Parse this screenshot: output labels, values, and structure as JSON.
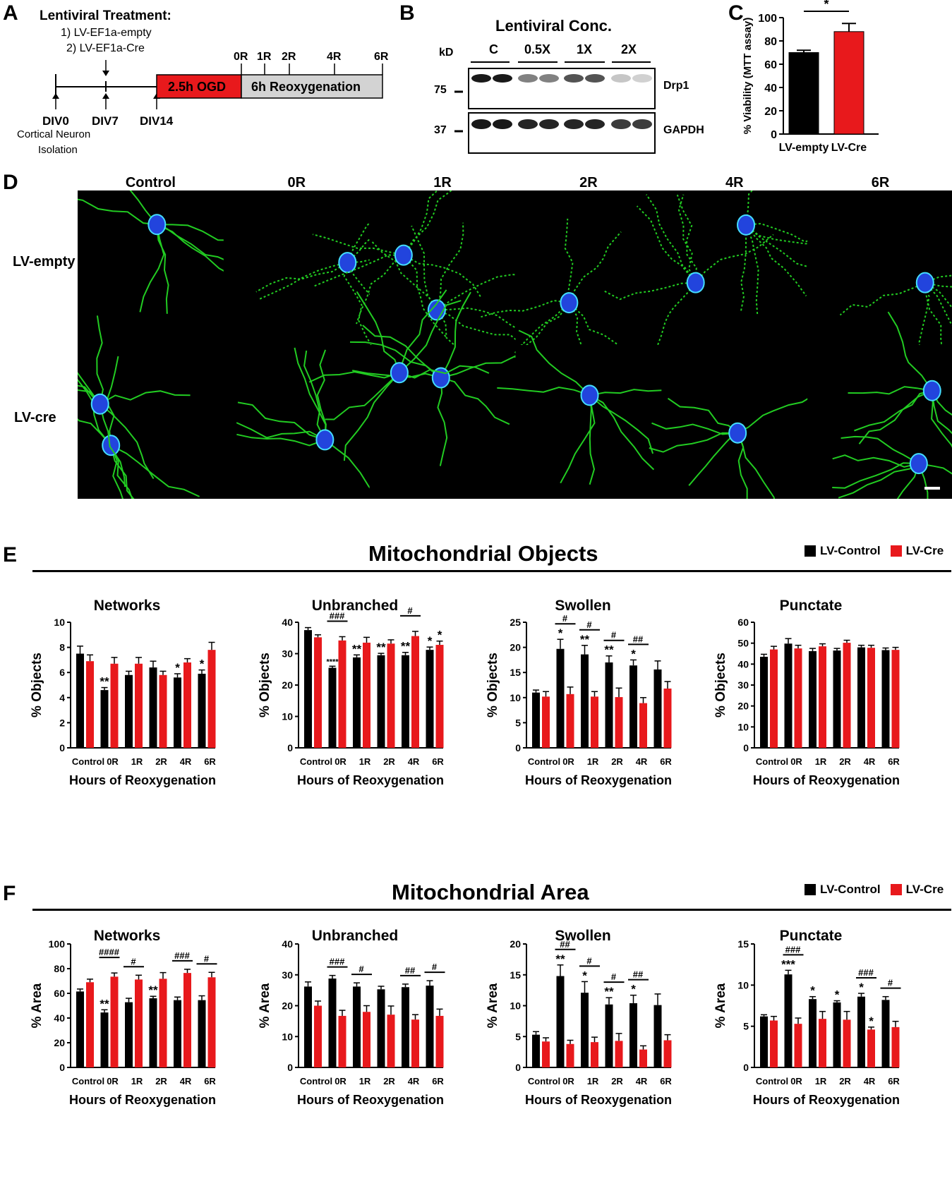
{
  "panel_a": {
    "letter": "A",
    "title": "Lentiviral Treatment:",
    "item1": "1) LV-EF1a-empty",
    "item2": "2) LV-EF1a-Cre",
    "ogd_label": "2.5h OGD",
    "reox_label": "6h Reoxygenation",
    "timepoints": [
      "0R",
      "1R",
      "2R",
      "4R",
      "6R"
    ],
    "div0": "DIV0",
    "div7": "DIV7",
    "div14": "DIV14",
    "isolation_line1": "Cortical Neuron",
    "isolation_line2": "Isolation",
    "colors": {
      "ogd": "#e8191c",
      "reox": "#d3d3d3"
    }
  },
  "panel_b": {
    "letter": "B",
    "title": "Lentiviral Conc.",
    "kd_label": "kD",
    "groups": [
      "C",
      "0.5X",
      "1X",
      "2X"
    ],
    "mw_top": "75",
    "mw_bottom": "37",
    "band_top": "Drp1",
    "band_bottom": "GAPDH",
    "drp1_intensity": [
      1.0,
      1.0,
      0.55,
      0.55,
      0.75,
      0.75,
      0.25,
      0.2
    ],
    "gapdh_intensity": [
      1.0,
      1.0,
      0.95,
      0.95,
      0.95,
      0.95,
      0.85,
      0.85
    ]
  },
  "panel_c": {
    "letter": "C",
    "chart_data": {
      "type": "bar",
      "categories": [
        "LV-empty",
        "LV-Cre"
      ],
      "values": [
        70,
        88
      ],
      "errors": [
        2,
        7
      ],
      "colors": [
        "#000000",
        "#e8191c"
      ],
      "ylabel": "% Viability (MTT assay)",
      "ylim": [
        0,
        100
      ],
      "yticks": [
        "0",
        "20",
        "40",
        "60",
        "80",
        "100"
      ],
      "significance": "*"
    }
  },
  "panel_d": {
    "letter": "D",
    "columns": [
      "Control",
      "0R",
      "1R",
      "2R",
      "4R",
      "6R"
    ],
    "rows": [
      "LV-empty",
      "LV-cre"
    ]
  },
  "panel_e": {
    "letter": "E",
    "title": "Mitochondrial Objects",
    "legend": [
      "LV-Control",
      "LV-Cre"
    ]
  },
  "panel_f": {
    "letter": "F",
    "title": "Mitochondrial Area",
    "legend": [
      "LV-Control",
      "LV-Cre"
    ]
  },
  "colors": {
    "control": "#000000",
    "cre": "#e8191c",
    "micro_green": "#22cc22",
    "micro_blue": "#2244dd"
  },
  "chart_data": [
    {
      "id": "E-networks",
      "type": "bar",
      "title": "Networks",
      "xlabel": "Hours of Reoxygenation",
      "ylabel": "% Objects",
      "categories": [
        "Control",
        "0R",
        "1R",
        "2R",
        "4R",
        "6R"
      ],
      "ylim": [
        0,
        10
      ],
      "yticks": [
        "0",
        "2",
        "4",
        "6",
        "8",
        "10"
      ],
      "series": [
        {
          "name": "LV-Control",
          "values": [
            7.5,
            4.6,
            5.8,
            6.4,
            5.6,
            5.9
          ],
          "errors": [
            0.6,
            0.2,
            0.3,
            0.5,
            0.3,
            0.3
          ],
          "stars": [
            "",
            "**",
            "",
            "",
            "*",
            "*"
          ]
        },
        {
          "name": "LV-Cre",
          "values": [
            6.9,
            6.7,
            6.7,
            5.8,
            6.8,
            7.8
          ],
          "errors": [
            0.5,
            0.5,
            0.5,
            0.3,
            0.3,
            0.6
          ],
          "stars": [
            "",
            "",
            "",
            "",
            "",
            ""
          ]
        }
      ],
      "hash": [
        "",
        "",
        "",
        "",
        "",
        ""
      ]
    },
    {
      "id": "E-unbranched",
      "type": "bar",
      "title": "Unbranched",
      "xlabel": "Hours of Reoxygenation",
      "ylabel": "% Objects",
      "categories": [
        "Control",
        "0R",
        "1R",
        "2R",
        "4R",
        "6R"
      ],
      "ylim": [
        0,
        40
      ],
      "yticks": [
        "0",
        "10",
        "20",
        "30",
        "40"
      ],
      "series": [
        {
          "name": "LV-Control",
          "values": [
            37.5,
            25.5,
            28.8,
            29.5,
            29.5,
            31.2
          ],
          "errors": [
            0.8,
            0.5,
            0.8,
            0.6,
            0.9,
            0.9
          ],
          "stars": [
            "",
            "****",
            "**",
            "**",
            "**",
            "*"
          ]
        },
        {
          "name": "LV-Cre",
          "values": [
            35.2,
            34.2,
            33.5,
            33.2,
            35.6,
            32.8
          ],
          "errors": [
            0.8,
            1.2,
            1.7,
            1.2,
            1.5,
            1.2
          ],
          "stars": [
            "",
            "",
            "",
            "",
            "",
            "*"
          ]
        }
      ],
      "hash": [
        "",
        "###",
        "",
        "",
        "#",
        ""
      ]
    },
    {
      "id": "E-swollen",
      "type": "bar",
      "title": "Swollen",
      "xlabel": "Hours of Reoxygenation",
      "ylabel": "% Objects",
      "categories": [
        "Control",
        "0R",
        "1R",
        "2R",
        "4R",
        "6R"
      ],
      "ylim": [
        0,
        25
      ],
      "yticks": [
        "0",
        "5",
        "10",
        "15",
        "20",
        "25"
      ],
      "series": [
        {
          "name": "LV-Control",
          "values": [
            11.0,
            19.7,
            18.6,
            17.0,
            16.4,
            15.6
          ],
          "errors": [
            0.5,
            1.9,
            1.8,
            1.3,
            1.1,
            1.7
          ],
          "stars": [
            "",
            "*",
            "**",
            "**",
            "*",
            ""
          ]
        },
        {
          "name": "LV-Cre",
          "values": [
            10.2,
            10.7,
            10.2,
            10.1,
            8.9,
            11.8
          ],
          "errors": [
            1.0,
            1.4,
            1.0,
            1.8,
            1.1,
            1.4
          ],
          "stars": [
            "",
            "",
            "",
            "",
            "",
            ""
          ]
        }
      ],
      "hash": [
        "",
        "#",
        "#",
        "#",
        "##",
        ""
      ]
    },
    {
      "id": "E-punctate",
      "type": "bar",
      "title": "Punctate",
      "xlabel": "Hours of Reoxygenation",
      "ylabel": "% Objects",
      "categories": [
        "Control",
        "0R",
        "1R",
        "2R",
        "4R",
        "6R"
      ],
      "ylim": [
        0,
        60
      ],
      "yticks": [
        "0",
        "10",
        "20",
        "30",
        "40",
        "50",
        "60"
      ],
      "series": [
        {
          "name": "LV-Control",
          "values": [
            43.5,
            49.8,
            46.2,
            46.5,
            48.0,
            46.7
          ],
          "errors": [
            1.2,
            2.4,
            1.3,
            1.0,
            1.0,
            1.0
          ],
          "stars": [
            "",
            "",
            "",
            "",
            "",
            ""
          ]
        },
        {
          "name": "LV-Cre",
          "values": [
            47.0,
            47.5,
            48.5,
            50.2,
            47.8,
            46.8
          ],
          "errors": [
            1.5,
            1.5,
            1.2,
            1.2,
            1.2,
            1.2
          ],
          "stars": [
            "",
            "",
            "",
            "",
            "",
            ""
          ]
        }
      ],
      "hash": [
        "",
        "",
        "",
        "",
        "",
        ""
      ]
    },
    {
      "id": "F-networks",
      "type": "bar",
      "title": "Networks",
      "xlabel": "Hours of Reoxygenation",
      "ylabel": "% Area",
      "categories": [
        "Control",
        "0R",
        "1R",
        "2R",
        "4R",
        "6R"
      ],
      "ylim": [
        0,
        100
      ],
      "yticks": [
        "0",
        "20",
        "40",
        "60",
        "80",
        "100"
      ],
      "series": [
        {
          "name": "LV-Control",
          "values": [
            61.5,
            44.5,
            52.8,
            56.0,
            54.5,
            54.5
          ],
          "errors": [
            2.0,
            2.2,
            3.2,
            1.6,
            2.5,
            3.5
          ],
          "stars": [
            "",
            "**",
            "",
            "**",
            "",
            ""
          ]
        },
        {
          "name": "LV-Cre",
          "values": [
            69.0,
            73.5,
            71.2,
            71.8,
            76.5,
            73.0
          ],
          "errors": [
            2.5,
            3.0,
            3.5,
            5.0,
            3.0,
            4.0
          ],
          "stars": [
            "",
            "",
            "",
            "",
            "",
            ""
          ]
        }
      ],
      "hash": [
        "",
        "####",
        "#",
        "",
        "###",
        "#"
      ]
    },
    {
      "id": "F-unbranched",
      "type": "bar",
      "title": "Unbranched",
      "xlabel": "Hours of Reoxygenation",
      "ylabel": "% Area",
      "categories": [
        "Control",
        "0R",
        "1R",
        "2R",
        "4R",
        "6R"
      ],
      "ylim": [
        0,
        40
      ],
      "yticks": [
        "0",
        "10",
        "20",
        "30",
        "40"
      ],
      "series": [
        {
          "name": "LV-Control",
          "values": [
            26.2,
            28.8,
            26.2,
            25.3,
            26.0,
            26.5
          ],
          "errors": [
            1.5,
            1.0,
            1.2,
            1.0,
            1.0,
            1.6
          ],
          "stars": [
            "",
            "",
            "",
            "",
            "",
            ""
          ]
        },
        {
          "name": "LV-Cre",
          "values": [
            20.0,
            16.7,
            18.0,
            17.1,
            15.5,
            16.7
          ],
          "errors": [
            1.5,
            1.8,
            2.0,
            2.8,
            1.6,
            2.2
          ],
          "stars": [
            "",
            "",
            "",
            "",
            "",
            ""
          ]
        }
      ],
      "hash": [
        "",
        "###",
        "#",
        "",
        "##",
        "#"
      ]
    },
    {
      "id": "F-swollen",
      "type": "bar",
      "title": "Swollen",
      "xlabel": "Hours of Reoxygenation",
      "ylabel": "% Area",
      "categories": [
        "Control",
        "0R",
        "1R",
        "2R",
        "4R",
        "6R"
      ],
      "ylim": [
        0,
        20
      ],
      "yticks": [
        "0",
        "5",
        "10",
        "15",
        "20"
      ],
      "series": [
        {
          "name": "LV-Control",
          "values": [
            5.3,
            14.8,
            12.1,
            10.2,
            10.4,
            10.1
          ],
          "errors": [
            0.5,
            1.8,
            1.8,
            1.1,
            1.3,
            1.8
          ],
          "stars": [
            "",
            "**",
            "*",
            "**",
            "*",
            ""
          ]
        },
        {
          "name": "LV-Cre",
          "values": [
            4.2,
            3.8,
            4.1,
            4.3,
            2.9,
            4.4
          ],
          "errors": [
            0.6,
            0.6,
            0.8,
            1.2,
            0.6,
            0.9
          ],
          "stars": [
            "",
            "",
            "",
            "",
            "",
            ""
          ]
        }
      ],
      "hash": [
        "",
        "##",
        "#",
        "#",
        "##",
        ""
      ]
    },
    {
      "id": "F-punctate",
      "type": "bar",
      "title": "Punctate",
      "xlabel": "Hours of Reoxygenation",
      "ylabel": "% Area",
      "categories": [
        "Control",
        "0R",
        "1R",
        "2R",
        "4R",
        "6R"
      ],
      "ylim": [
        0,
        15
      ],
      "yticks": [
        "0",
        "5",
        "10",
        "15"
      ],
      "series": [
        {
          "name": "LV-Control",
          "values": [
            6.2,
            11.3,
            8.3,
            7.9,
            8.6,
            8.2
          ],
          "errors": [
            0.2,
            0.5,
            0.3,
            0.2,
            0.4,
            0.4
          ],
          "stars": [
            "",
            "***",
            "*",
            "*",
            "*",
            ""
          ]
        },
        {
          "name": "LV-Cre",
          "values": [
            5.7,
            5.3,
            5.9,
            5.8,
            4.6,
            4.9
          ],
          "errors": [
            0.5,
            0.7,
            0.9,
            1.0,
            0.3,
            0.7
          ],
          "stars": [
            "",
            "",
            "",
            "",
            "*",
            ""
          ]
        }
      ],
      "hash": [
        "",
        "###",
        "",
        "",
        "###",
        "#"
      ]
    }
  ]
}
